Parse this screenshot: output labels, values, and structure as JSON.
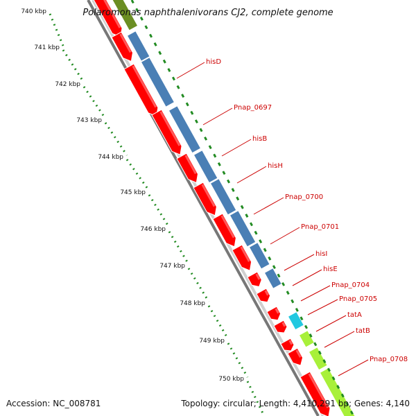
{
  "title": "Polaromonas naphthalenivorans CJ2, complete genome",
  "footer": {
    "accession": "Accession: NC_008781",
    "topology": "Topology: circular; Length: 4,410,291 bp; Genes: 4,140"
  },
  "colors": {
    "cds_forward": "#ff0000",
    "cds_highlight": "#ffffff",
    "feature_blue": "#4a7fb5",
    "feature_cyan": "#22c8e0",
    "feature_lime": "#a8f03a",
    "feature_olive": "#6b8e23",
    "scale_ticks": "#228b22",
    "backbone": "#8c8c8c",
    "label_text": "#cc0000"
  },
  "scale_ticks": [
    {
      "label": "740 kbp",
      "kbp": 740
    },
    {
      "label": "741 kbp",
      "kbp": 741
    },
    {
      "label": "742 kbp",
      "kbp": 742
    },
    {
      "label": "743 kbp",
      "kbp": 743
    },
    {
      "label": "744 kbp",
      "kbp": 744
    },
    {
      "label": "745 kbp",
      "kbp": 745
    },
    {
      "label": "746 kbp",
      "kbp": 746
    },
    {
      "label": "747 kbp",
      "kbp": 747
    },
    {
      "label": "748 kbp",
      "kbp": 748
    },
    {
      "label": "749 kbp",
      "kbp": 749
    },
    {
      "label": "750 kbp",
      "kbp": 750
    }
  ],
  "genes": [
    {
      "label": "hisD"
    },
    {
      "label": "Pnap_0697"
    },
    {
      "label": "hisB"
    },
    {
      "label": "hisH"
    },
    {
      "label": "Pnap_0700"
    },
    {
      "label": "Pnap_0701"
    },
    {
      "label": "hisI"
    },
    {
      "label": "hisE"
    },
    {
      "label": "Pnap_0704"
    },
    {
      "label": "Pnap_0705"
    },
    {
      "label": "tatA"
    },
    {
      "label": "tatB"
    },
    {
      "label": "Pnap_0708"
    }
  ]
}
